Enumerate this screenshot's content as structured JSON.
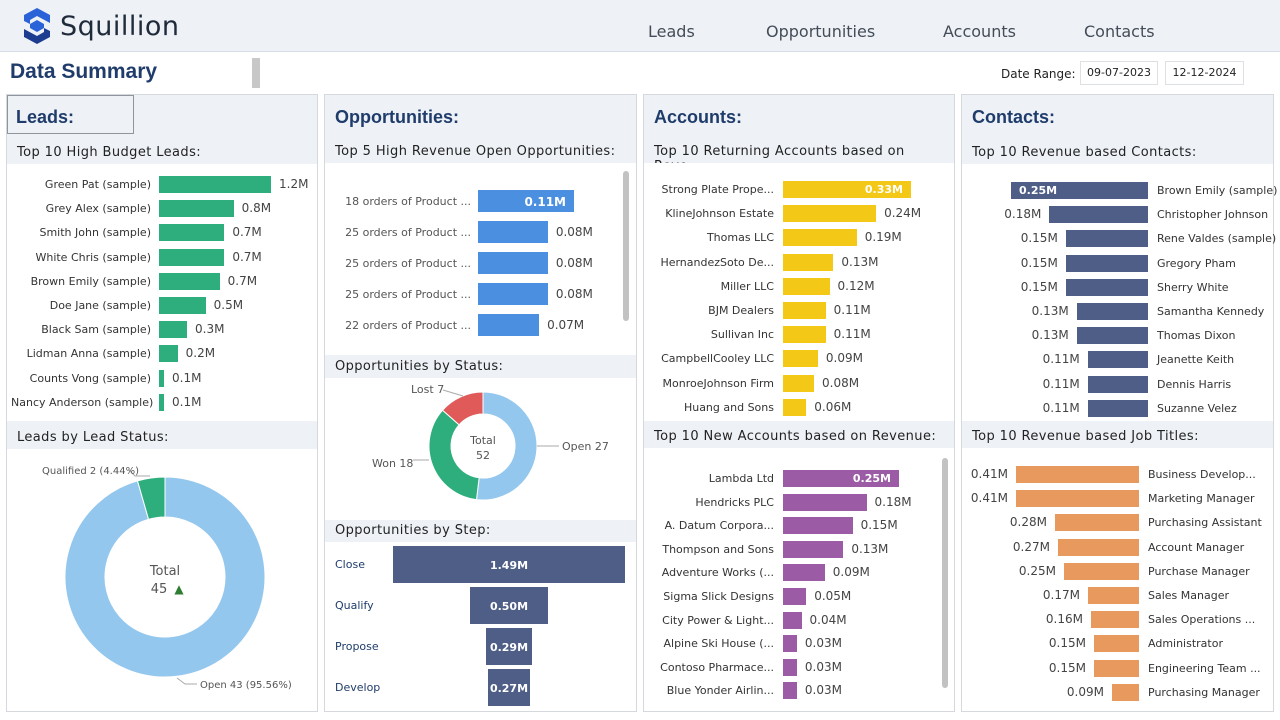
{
  "app": {
    "name": "Squillion"
  },
  "nav": {
    "leads": "Leads",
    "opportunities": "Opportunities",
    "accounts": "Accounts",
    "contacts": "Contacts"
  },
  "header": {
    "title": "Data Summary",
    "date_range_label": "Date Range:",
    "start_date": "09-07-2023",
    "end_date": "12-12-2024"
  },
  "colors": {
    "leads_green": "#2eae7d",
    "opp_blue": "#4a8fe0",
    "accounts_yellow": "#f4c816",
    "accounts_purple": "#9b5ca5",
    "contacts_navy": "#4e5e87",
    "contacts_orange": "#e89a5e",
    "donut_blue": "#94c7ee",
    "donut_red": "#e05a5a",
    "title_navy": "#1f3c6b"
  },
  "leads": {
    "title": "Leads:",
    "top_budget_title": "Top 10 High Budget Leads:",
    "top_budget": [
      {
        "name": "Green Pat (sample)",
        "value": 1.2,
        "label": "1.2M"
      },
      {
        "name": "Grey Alex (sample)",
        "value": 0.8,
        "label": "0.8M"
      },
      {
        "name": "Smith John (sample)",
        "value": 0.7,
        "label": "0.7M"
      },
      {
        "name": "White Chris (sample)",
        "value": 0.7,
        "label": "0.7M"
      },
      {
        "name": "Brown Emily (sample)",
        "value": 0.65,
        "label": "0.7M"
      },
      {
        "name": "Doe Jane (sample)",
        "value": 0.5,
        "label": "0.5M"
      },
      {
        "name": "Black Sam (sample)",
        "value": 0.3,
        "label": "0.3M"
      },
      {
        "name": "Lidman Anna (sample)",
        "value": 0.2,
        "label": "0.2M"
      },
      {
        "name": "Counts Vong (sample)",
        "value": 0.05,
        "label": "0.1M"
      },
      {
        "name": "Nancy Anderson (sample)",
        "value": 0.05,
        "label": "0.1M"
      }
    ],
    "status_title": "Leads by Lead Status:",
    "status": {
      "total_label": "Total",
      "total_value": "45",
      "trend": "▲",
      "segments": [
        {
          "label": "Qualified 2 (4.44%)",
          "value": 2,
          "color": "#2eae7d"
        },
        {
          "label": "Open 43 (95.56%)",
          "value": 43,
          "color": "#94c7ee"
        }
      ]
    }
  },
  "opportunities": {
    "title": "Opportunities:",
    "top_revenue_title": "Top 5 High Revenue Open Opportunities:",
    "top_revenue": [
      {
        "name": "18 orders of Product ...",
        "value": 0.11,
        "label": "0.11M"
      },
      {
        "name": "25 orders of Product ...",
        "value": 0.08,
        "label": "0.08M"
      },
      {
        "name": "25 orders of Product ...",
        "value": 0.08,
        "label": "0.08M"
      },
      {
        "name": "25 orders of Product ...",
        "value": 0.08,
        "label": "0.08M"
      },
      {
        "name": "22 orders of Product ...",
        "value": 0.07,
        "label": "0.07M"
      }
    ],
    "status_title": "Opportunities by Status:",
    "status": {
      "total_label": "Total",
      "total_value": "52",
      "segments": [
        {
          "label": "Open 27",
          "value": 27,
          "color": "#94c7ee"
        },
        {
          "label": "Won 18",
          "value": 18,
          "color": "#2eae7d"
        },
        {
          "label": "Lost 7",
          "value": 7,
          "color": "#e05a5a"
        }
      ]
    },
    "step_title": "Opportunities by Step:",
    "steps": [
      {
        "name": "Close",
        "value": 1.49,
        "label": "1.49M"
      },
      {
        "name": "Qualify",
        "value": 0.5,
        "label": "0.50M"
      },
      {
        "name": "Propose",
        "value": 0.29,
        "label": "0.29M"
      },
      {
        "name": "Develop",
        "value": 0.27,
        "label": "0.27M"
      }
    ]
  },
  "accounts": {
    "title": "Accounts:",
    "returning_title": "Top 10 Returning Accounts based on Reve...",
    "returning": [
      {
        "name": "Strong Plate Prope...",
        "value": 0.33,
        "label": "0.33M"
      },
      {
        "name": "KlineJohnson Estate",
        "value": 0.24,
        "label": "0.24M"
      },
      {
        "name": "Thomas LLC",
        "value": 0.19,
        "label": "0.19M"
      },
      {
        "name": "HernandezSoto De...",
        "value": 0.13,
        "label": "0.13M"
      },
      {
        "name": "Miller LLC",
        "value": 0.12,
        "label": "0.12M"
      },
      {
        "name": "BJM Dealers",
        "value": 0.11,
        "label": "0.11M"
      },
      {
        "name": "Sullivan Inc",
        "value": 0.11,
        "label": "0.11M"
      },
      {
        "name": "CampbellCooley LLC",
        "value": 0.09,
        "label": "0.09M"
      },
      {
        "name": "MonroeJohnson Firm",
        "value": 0.08,
        "label": "0.08M"
      },
      {
        "name": "Huang and Sons",
        "value": 0.06,
        "label": "0.06M"
      }
    ],
    "new_title": "Top 10 New Accounts based on Revenue:",
    "new": [
      {
        "name": "Lambda Ltd",
        "value": 0.25,
        "label": "0.25M"
      },
      {
        "name": "Hendricks PLC",
        "value": 0.18,
        "label": "0.18M"
      },
      {
        "name": "A. Datum Corpora...",
        "value": 0.15,
        "label": "0.15M"
      },
      {
        "name": "Thompson and Sons",
        "value": 0.13,
        "label": "0.13M"
      },
      {
        "name": "Adventure Works (...",
        "value": 0.09,
        "label": "0.09M"
      },
      {
        "name": "Sigma Slick Designs",
        "value": 0.05,
        "label": "0.05M"
      },
      {
        "name": "City Power & Light...",
        "value": 0.04,
        "label": "0.04M"
      },
      {
        "name": "Alpine Ski House (...",
        "value": 0.03,
        "label": "0.03M"
      },
      {
        "name": "Contoso Pharmace...",
        "value": 0.03,
        "label": "0.03M"
      },
      {
        "name": "Blue Yonder Airlin...",
        "value": 0.03,
        "label": "0.03M"
      }
    ]
  },
  "contacts": {
    "title": "Contacts:",
    "revenue_title": "Top 10 Revenue based Contacts:",
    "revenue": [
      {
        "name": "Brown Emily (sample)",
        "value": 0.25,
        "label": "0.25M"
      },
      {
        "name": "Christopher Johnson",
        "value": 0.18,
        "label": "0.18M"
      },
      {
        "name": "Rene Valdes (sample)",
        "value": 0.15,
        "label": "0.15M"
      },
      {
        "name": "Gregory Pham",
        "value": 0.15,
        "label": "0.15M"
      },
      {
        "name": "Sherry White",
        "value": 0.15,
        "label": "0.15M"
      },
      {
        "name": "Samantha Kennedy",
        "value": 0.13,
        "label": "0.13M"
      },
      {
        "name": "Thomas Dixon",
        "value": 0.13,
        "label": "0.13M"
      },
      {
        "name": "Jeanette Keith",
        "value": 0.11,
        "label": "0.11M"
      },
      {
        "name": "Dennis Harris",
        "value": 0.11,
        "label": "0.11M"
      },
      {
        "name": "Suzanne Velez",
        "value": 0.11,
        "label": "0.11M"
      }
    ],
    "job_title": "Top 10 Revenue based Job Titles:",
    "jobs": [
      {
        "name": "Business Develop...",
        "value": 0.41,
        "label": "0.41M"
      },
      {
        "name": "Marketing Manager",
        "value": 0.41,
        "label": "0.41M"
      },
      {
        "name": "Purchasing Assistant",
        "value": 0.28,
        "label": "0.28M"
      },
      {
        "name": "Account Manager",
        "value": 0.27,
        "label": "0.27M"
      },
      {
        "name": "Purchase Manager",
        "value": 0.25,
        "label": "0.25M"
      },
      {
        "name": "Sales Manager",
        "value": 0.17,
        "label": "0.17M"
      },
      {
        "name": "Sales Operations ...",
        "value": 0.16,
        "label": "0.16M"
      },
      {
        "name": "Administrator",
        "value": 0.15,
        "label": "0.15M"
      },
      {
        "name": "Engineering Team ...",
        "value": 0.15,
        "label": "0.15M"
      },
      {
        "name": "Purchasing Manager",
        "value": 0.09,
        "label": "0.09M"
      }
    ]
  }
}
